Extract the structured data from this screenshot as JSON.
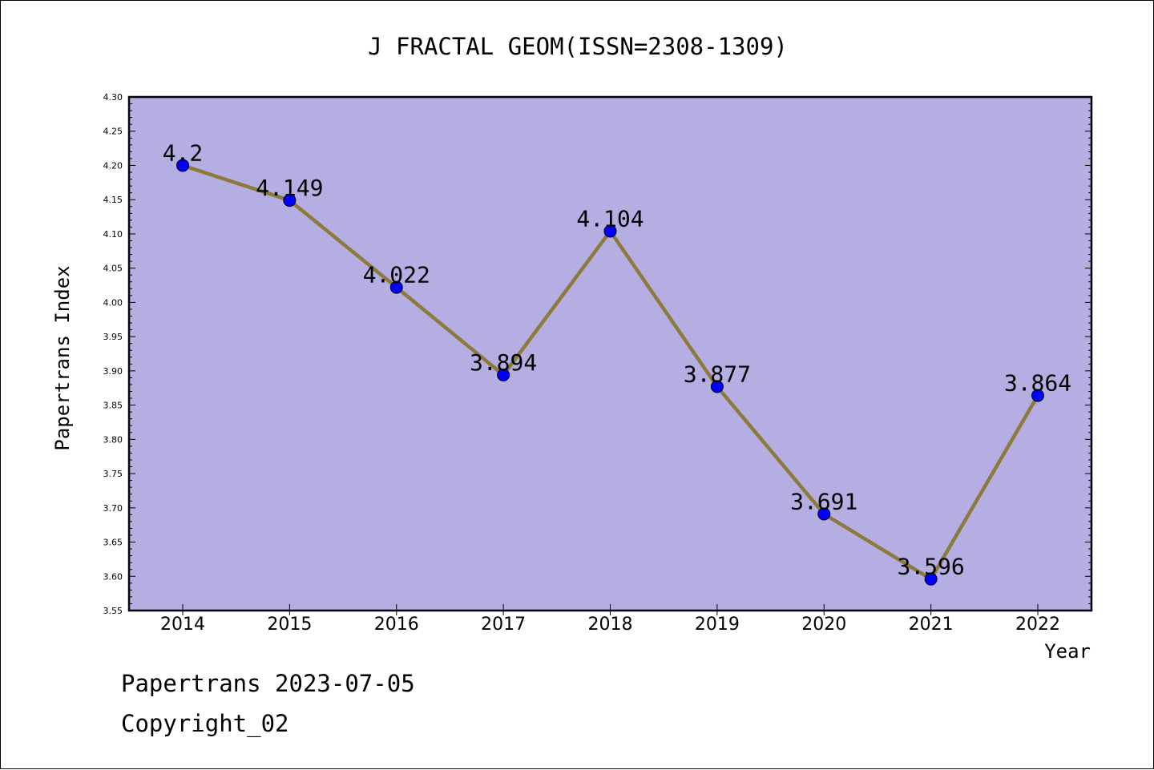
{
  "chart_data": {
    "type": "line",
    "title": "J FRACTAL GEOM(ISSN=2308-1309)",
    "xlabel": "Year",
    "ylabel": "Papertrans Index",
    "categories": [
      "2014",
      "2015",
      "2016",
      "2017",
      "2018",
      "2019",
      "2020",
      "2021",
      "2022"
    ],
    "values": [
      4.2,
      4.149,
      4.022,
      3.894,
      4.104,
      3.877,
      3.691,
      3.596,
      3.864
    ],
    "data_labels": [
      "4.2",
      "4.149",
      "4.022",
      "3.894",
      "4.104",
      "3.877",
      "3.691",
      "3.596",
      "3.864"
    ],
    "ylim": [
      3.55,
      4.3
    ],
    "yticks": [
      "3.55",
      "3.60",
      "3.65",
      "3.70",
      "3.75",
      "3.80",
      "3.85",
      "3.90",
      "3.95",
      "4.00",
      "4.05",
      "4.10",
      "4.15",
      "4.20",
      "4.25",
      "4.30"
    ],
    "grid": false,
    "colors": {
      "plot_background": "#b5aee3",
      "line": "#8c7a3c",
      "marker": "#0000ff"
    }
  },
  "footer": {
    "line1": "Papertrans 2023-07-05",
    "line2": "Copyright_02"
  }
}
